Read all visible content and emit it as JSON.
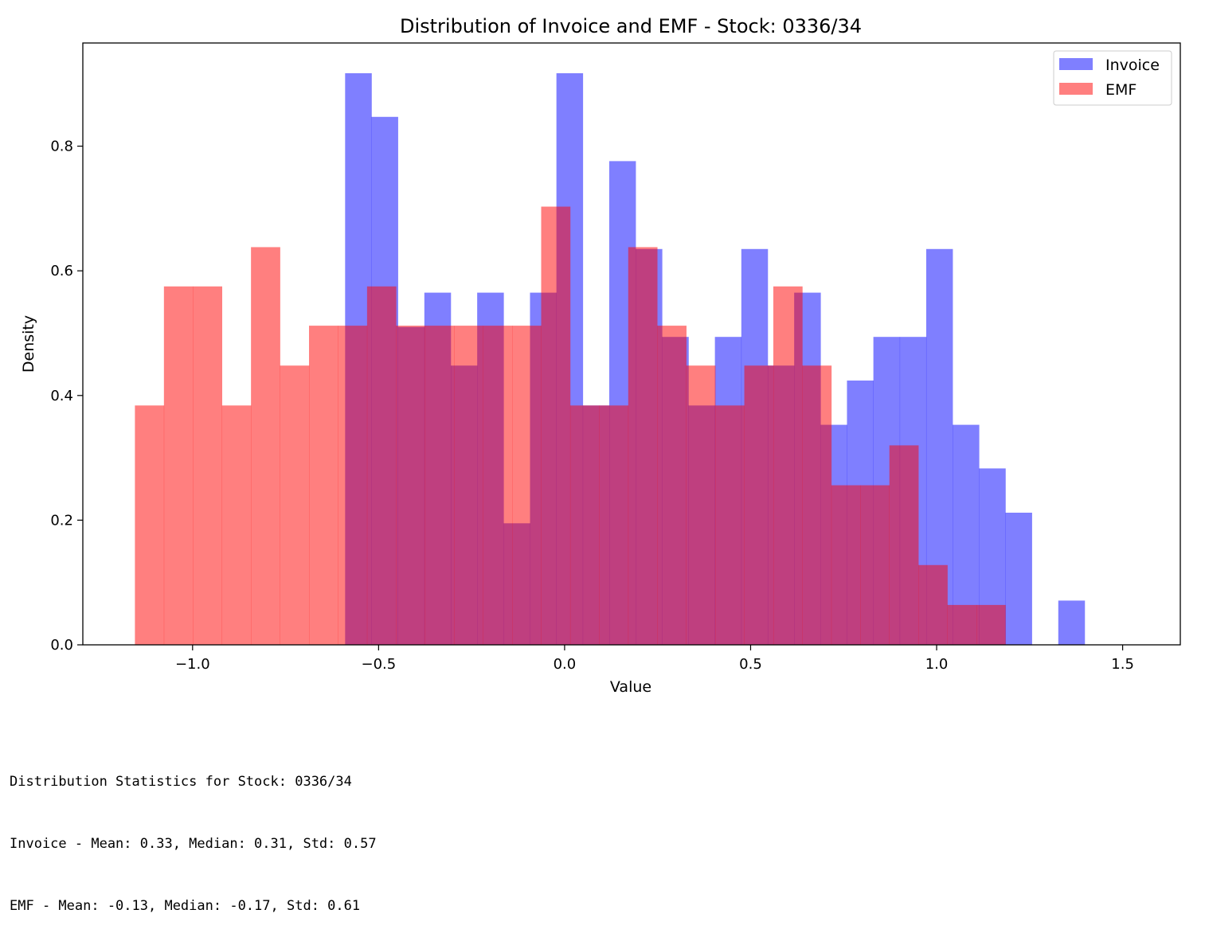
{
  "chart_data": {
    "type": "histogram",
    "title": "Distribution of Invoice and EMF - Stock: 0336/34",
    "xlabel": "Value",
    "ylabel": "Density",
    "xlim": [
      -1.295,
      1.655
    ],
    "ylim": [
      0.0,
      0.9655
    ],
    "x_ticks": [
      -1.0,
      -0.5,
      0.0,
      0.5,
      1.0,
      1.5
    ],
    "x_tick_labels": [
      "−1.0",
      "−0.5",
      "0.0",
      "0.5",
      "1.0",
      "1.5"
    ],
    "y_ticks": [
      0.0,
      0.2,
      0.4,
      0.6,
      0.8
    ],
    "y_tick_labels": [
      "0.0",
      "0.2",
      "0.4",
      "0.6",
      "0.8"
    ],
    "grid": false,
    "legend_position": "top-right",
    "overlap_color": "#c03e7c",
    "series": [
      {
        "name": "Invoice",
        "color": "#0000ff",
        "alpha": 0.5,
        "bin_edges": [
          -0.59,
          -0.519,
          -0.448,
          -0.377,
          -0.306,
          -0.235,
          -0.164,
          -0.093,
          -0.022,
          0.049,
          0.12,
          0.191,
          0.262,
          0.333,
          0.404,
          0.475,
          0.546,
          0.617,
          0.688,
          0.759,
          0.83,
          0.901,
          0.972,
          1.043,
          1.114,
          1.185,
          1.256,
          1.327,
          1.398,
          1.469,
          1.54
        ],
        "values": [
          0.917,
          0.847,
          0.51,
          0.565,
          0.448,
          0.565,
          0.195,
          0.565,
          0.917,
          0.384,
          0.776,
          0.635,
          0.494,
          0.384,
          0.494,
          0.635,
          0.448,
          0.565,
          0.353,
          0.424,
          0.494,
          0.494,
          0.635,
          0.353,
          0.283,
          0.212,
          0.0,
          0.071,
          0.0,
          0.0
        ]
      },
      {
        "name": "EMF",
        "color": "#ff0000",
        "alpha": 0.5,
        "bin_edges": [
          -1.155,
          -1.077,
          -0.999,
          -0.921,
          -0.843,
          -0.765,
          -0.687,
          -0.609,
          -0.531,
          -0.453,
          -0.375,
          -0.297,
          -0.219,
          -0.141,
          -0.063,
          0.015,
          0.093,
          0.171,
          0.249,
          0.327,
          0.405,
          0.483,
          0.561,
          0.639,
          0.717,
          0.795,
          0.873,
          0.951,
          1.029,
          1.107,
          1.185
        ],
        "values": [
          0.384,
          0.575,
          0.575,
          0.384,
          0.638,
          0.448,
          0.512,
          0.512,
          0.575,
          0.512,
          0.512,
          0.512,
          0.512,
          0.512,
          0.703,
          0.384,
          0.384,
          0.638,
          0.512,
          0.448,
          0.384,
          0.448,
          0.575,
          0.448,
          0.256,
          0.256,
          0.32,
          0.128,
          0.064,
          0.064
        ]
      }
    ]
  },
  "stats": {
    "line1": "Distribution Statistics for Stock: 0336/34",
    "line2": "Invoice - Mean: 0.33, Median: 0.31, Std: 0.57",
    "line3": "EMF - Mean: -0.13, Median: -0.17, Std: 0.61"
  }
}
